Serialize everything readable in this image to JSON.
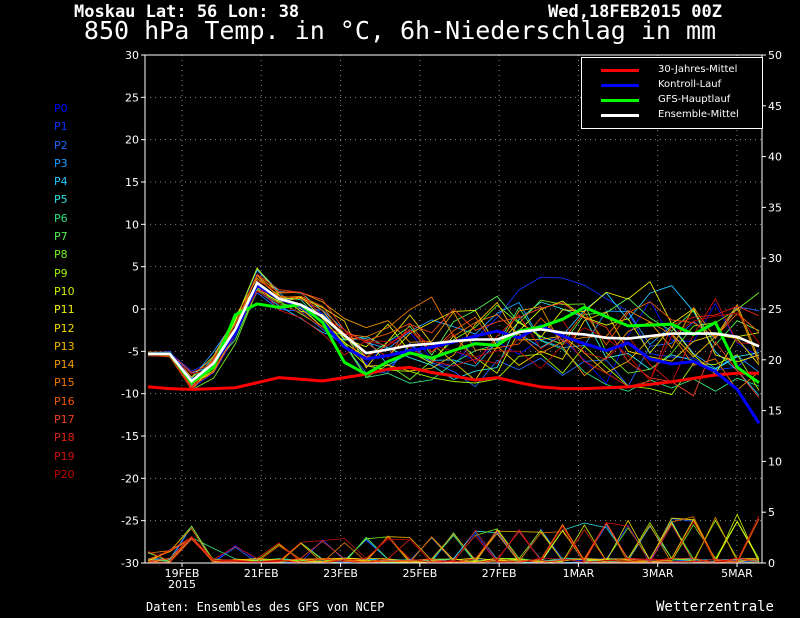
{
  "header": {
    "location": "Moskau  Lat: 56 Lon: 38",
    "date": "Wed,18FEB2015 00Z",
    "title": "850 hPa Temp. in °C, 6h-Niederschlag in mm"
  },
  "members": [
    "P0",
    "P1",
    "P2",
    "P3",
    "P4",
    "P5",
    "P6",
    "P7",
    "P8",
    "P9",
    "P10",
    "P11",
    "P12",
    "P13",
    "P14",
    "P15",
    "P16",
    "P17",
    "P18",
    "P19",
    "P20"
  ],
  "member_colors": [
    "#0000ff",
    "#1030ff",
    "#1e66ff",
    "#1e9cff",
    "#22c8ff",
    "#30e0e0",
    "#30e07a",
    "#50f050",
    "#70f020",
    "#a0f000",
    "#d0f000",
    "#f0f000",
    "#f0d800",
    "#f0b800",
    "#f09800",
    "#f07800",
    "#f05800",
    "#f04020",
    "#e02010",
    "#d01010",
    "#c00000"
  ],
  "legend": {
    "items": [
      {
        "label": "30-Jahres-Mittel",
        "color": "#ff0000"
      },
      {
        "label": "Kontroll-Lauf",
        "color": "#0000ff"
      },
      {
        "label": "GFS-Hauptlauf",
        "color": "#00ff00"
      },
      {
        "label": "Ensemble-Mittel",
        "color": "#ffffff"
      }
    ]
  },
  "footer": {
    "source": "Daten: Ensembles des GFS von NCEP",
    "brand": "Wetterzentrale"
  },
  "chart_data": {
    "type": "line",
    "ylim_left": [
      -30,
      30
    ],
    "ylim_right": [
      0,
      50
    ],
    "yticks_left": [
      "30",
      "25",
      "20",
      "15",
      "10",
      "5",
      "0",
      "-5",
      "-10",
      "-15",
      "-20",
      "-25",
      "-30"
    ],
    "yticks_right": [
      "50",
      "45",
      "40",
      "35",
      "30",
      "25",
      "20",
      "15",
      "10",
      "5",
      "0"
    ],
    "xtick_labels": [
      "19FEB",
      "21FEB",
      "23FEB",
      "25FEB",
      "27FEB",
      "1MAR",
      "3MAR",
      "5MAR"
    ],
    "xtick_sublabel": "2015",
    "grid": true,
    "legend_position": "top-right",
    "series": [
      {
        "name": "30-Jahres-Mittel",
        "color": "#ff0000",
        "values": [
          -9.2,
          -9.4,
          -9.5,
          -9.4,
          -9.3,
          -8.7,
          -8.1,
          -8.3,
          -8.5,
          -8.1,
          -7.7,
          -7.1,
          -6.9,
          -7.5,
          -7.9,
          -8.4,
          -8.1,
          -8.7,
          -9.2,
          -9.4,
          -9.4,
          -9.3,
          -9.2,
          -8.9,
          -8.6,
          -8.2,
          -7.8,
          -7.6,
          -7.6
        ]
      },
      {
        "name": "Kontroll-Lauf",
        "color": "#0000ff",
        "values": [
          -5.3,
          -5.2,
          -8.5,
          -6.5,
          -2.8,
          2.8,
          1.2,
          0.3,
          -1.5,
          -4.5,
          -5.9,
          -5.5,
          -4.9,
          -4.5,
          -3.9,
          -3.2,
          -2.6,
          -3.4,
          -2.0,
          -3.2,
          -4.1,
          -4.9,
          -4.0,
          -5.9,
          -6.5,
          -6.2,
          -7.4,
          -9.5,
          -13.5
        ]
      },
      {
        "name": "GFS-Hauptlauf",
        "color": "#00ff00",
        "values": [
          -5.3,
          -5.3,
          -8.7,
          -6.9,
          -0.7,
          0.6,
          0.2,
          0.5,
          -1.6,
          -6.3,
          -7.7,
          -6.2,
          -5.2,
          -5.8,
          -4.9,
          -4.1,
          -4.3,
          -2.6,
          -2.1,
          -1.2,
          0.2,
          -0.9,
          -2.0,
          -1.9,
          -1.8,
          -3.0,
          -1.6,
          -6.9,
          -8.7
        ]
      },
      {
        "name": "Ensemble-Mittel",
        "color": "#ffffff",
        "values": [
          -5.3,
          -5.3,
          -8.5,
          -6.4,
          -2.4,
          3.1,
          1.2,
          0.5,
          -0.9,
          -3.1,
          -5.2,
          -4.8,
          -4.3,
          -4.1,
          -3.8,
          -3.6,
          -3.6,
          -2.7,
          -2.4,
          -2.8,
          -3.0,
          -3.4,
          -3.5,
          -3.2,
          -2.9,
          -2.9,
          -2.9,
          -3.3,
          -4.4
        ]
      }
    ]
  }
}
